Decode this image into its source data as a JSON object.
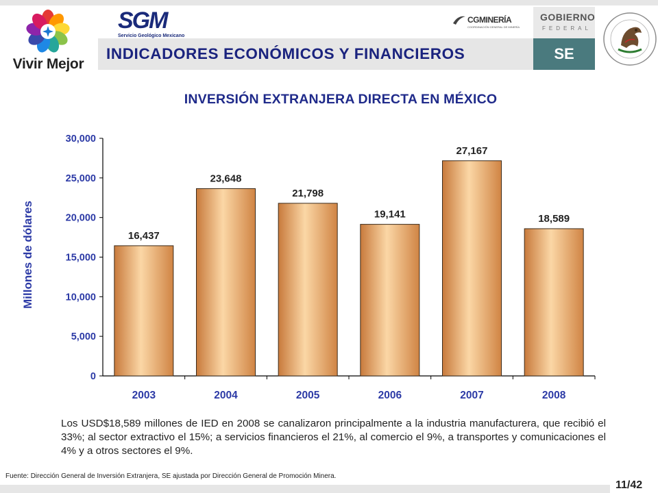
{
  "header": {
    "title": "INDICADORES ECONÓMICOS Y FINANCIEROS",
    "logos": {
      "vivir_mejor": "Vivir Mejor",
      "sgm": "SGM",
      "sgm_subtitle": "Servicio Geológico Mexicano",
      "cgmineria": "CGMINERÍA",
      "cgmineria_subtitle": "COORDINACIÓN GENERAL DE MINERÍA",
      "gobierno": "GOBIERNO",
      "federal": "FEDERAL",
      "se": "SE"
    }
  },
  "colors": {
    "title_blue": "#1f2a8a",
    "bar_fill": "#f0b070",
    "se_box": "#4a7a7e"
  },
  "chart_data": {
    "type": "bar",
    "title": "INVERSIÓN EXTRANJERA DIRECTA EN MÉXICO",
    "ylabel": "Millones de dólares",
    "xlabel": "",
    "categories": [
      "2003",
      "2004",
      "2005",
      "2006",
      "2007",
      "2008"
    ],
    "values": [
      16437,
      23648,
      21798,
      19141,
      27167,
      18589
    ],
    "value_labels": [
      "16,437",
      "23,648",
      "21,798",
      "19,141",
      "27,167",
      "18,589"
    ],
    "ylim": [
      0,
      30000
    ],
    "yticks": [
      0,
      5000,
      10000,
      15000,
      20000,
      25000,
      30000
    ],
    "ytick_labels": [
      "0",
      "5,000",
      "10,000",
      "15,000",
      "20,000",
      "25,000",
      "30,000"
    ],
    "grid": false,
    "legend": "none"
  },
  "description": "Los USD$18,589 millones de IED en 2008 se canalizaron principalmente a la industria manufacturera, que recibió el 33%; al sector extractivo el 15%; a servicios financieros el 21%, al comercio el 9%, a transportes y comunicaciones el 4% y a otros sectores el 9%.",
  "source": "Fuente: Dirección General de Inversión Extranjera, SE ajustada por Dirección General de Promoción Minera.",
  "page_number": "11/42"
}
